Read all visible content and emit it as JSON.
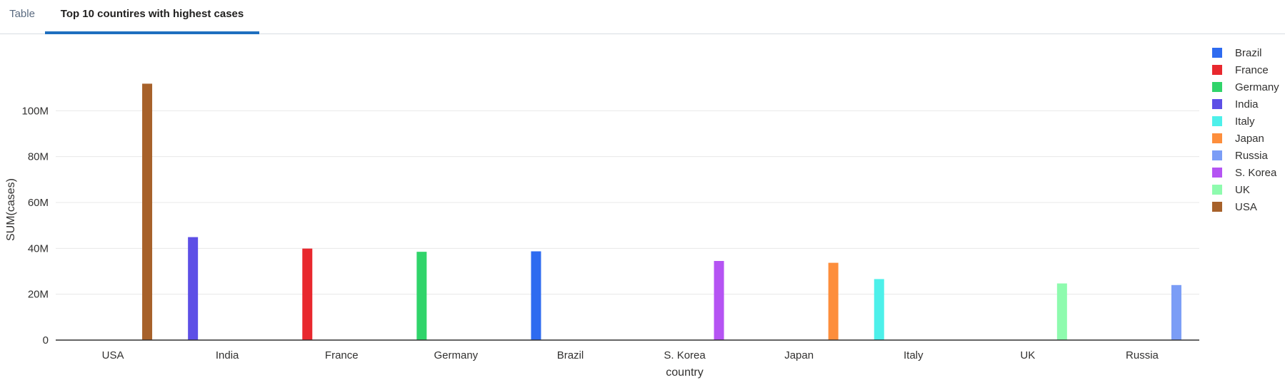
{
  "tabs": [
    {
      "label": "Table",
      "active": false
    },
    {
      "label": "Top 10 countires with highest cases",
      "active": true
    }
  ],
  "chart_data": {
    "type": "bar",
    "title": "",
    "xlabel": "country",
    "ylabel": "SUM(cases)",
    "ylim": [
      0,
      120000000
    ],
    "yticks": [
      0,
      20000000,
      40000000,
      60000000,
      80000000,
      100000000
    ],
    "ytick_labels": [
      "0",
      "20M",
      "40M",
      "60M",
      "80M",
      "100M"
    ],
    "categories": [
      "USA",
      "India",
      "France",
      "Germany",
      "Brazil",
      "S. Korea",
      "Japan",
      "Italy",
      "UK",
      "Russia"
    ],
    "values": [
      111800000,
      44900000,
      39900000,
      38500000,
      38700000,
      34500000,
      33700000,
      26600000,
      24700000,
      24000000
    ],
    "bar_offsets": [
      "+1",
      "-1",
      "-1",
      "-1",
      "-1",
      "+1",
      "+1",
      "-1",
      "+1",
      "+1"
    ],
    "series_colors": {
      "Brazil": "#2e6bf0",
      "France": "#e8282e",
      "Germany": "#30d46a",
      "India": "#5d4fe6",
      "Italy": "#4df0ea",
      "Japan": "#fd8e3c",
      "Russia": "#7b9df6",
      "S. Korea": "#b554f3",
      "UK": "#8efbae",
      "USA": "#a7612a"
    },
    "legend": [
      "Brazil",
      "France",
      "Germany",
      "India",
      "Italy",
      "Japan",
      "Russia",
      "S. Korea",
      "UK",
      "USA"
    ],
    "legend_position": "right",
    "grid": true
  }
}
